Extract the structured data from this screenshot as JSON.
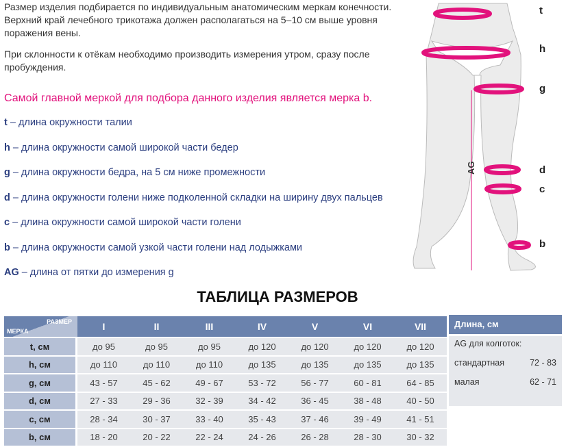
{
  "intro": [
    "Размер изделия подбирается по индивидуальным анатомическим меркам конечности. Верхний край лечебного трикотажа должен располагаться на 5–10 см выше уровня поражения вены.",
    "При склонности к отёкам необходимо производить измерения утром, сразу после пробуждения."
  ],
  "highlight": "Самой главной меркой для подбора данного изделия является мерка b.",
  "legend": [
    {
      "key": "t",
      "text": " – длина окружности талии"
    },
    {
      "key": "h",
      "text": " – длина окружности самой широкой части бедер"
    },
    {
      "key": "g",
      "text": " – длина окружности бедра, на 5 см ниже промежности"
    },
    {
      "key": "d",
      "text": " – длина окружности голени ниже подколенной складки на ширину двух пальцев"
    },
    {
      "key": "c",
      "text": " – длина окружности самой широкой части голени"
    },
    {
      "key": "b",
      "text": " – длина окружности самой узкой части голени над лодыжками"
    },
    {
      "key": "AG",
      "text": " – длина от пятки до измерения g"
    }
  ],
  "figure": {
    "labels": [
      "t",
      "h",
      "g",
      "d",
      "c",
      "b"
    ],
    "ag_label": "AG",
    "accent": "#e2127c"
  },
  "table": {
    "title": "ТАБЛИЦА РАЗМЕРОВ",
    "corner_top": "РАЗМЕР",
    "corner_bottom": "МЕРКА",
    "sizes": [
      "I",
      "II",
      "III",
      "IV",
      "V",
      "VI",
      "VII"
    ],
    "rows": [
      {
        "label": "t, см",
        "values": [
          "до 95",
          "до 95",
          "до 95",
          "до 120",
          "до 120",
          "до 120",
          "до 120"
        ]
      },
      {
        "label": "h, см",
        "values": [
          "до 110",
          "до 110",
          "до 110",
          "до 135",
          "до 135",
          "до 135",
          "до 135"
        ]
      },
      {
        "label": "g, см",
        "values": [
          "43 - 57",
          "45 - 62",
          "49 - 67",
          "53 - 72",
          "56 - 77",
          "60 - 81",
          "64 - 85"
        ]
      },
      {
        "label": "d, см",
        "values": [
          "27 - 33",
          "29 - 36",
          "32 - 39",
          "34 - 42",
          "36 - 45",
          "38 - 48",
          "40 - 50"
        ]
      },
      {
        "label": "c, см",
        "values": [
          "28 - 34",
          "30 - 37",
          "33 - 40",
          "35 - 43",
          "37 - 46",
          "39 - 49",
          "41 - 51"
        ]
      },
      {
        "label": "b, см",
        "values": [
          "18 - 20",
          "20 - 22",
          "22 - 24",
          "24 - 26",
          "26 - 28",
          "28 - 30",
          "30 - 32"
        ]
      }
    ]
  },
  "length": {
    "header": "Длина, см",
    "subtitle": "AG для колготок:",
    "rows": [
      {
        "label": "стандартная",
        "value": "72 - 83"
      },
      {
        "label": "малая",
        "value": "62 - 71"
      }
    ]
  }
}
